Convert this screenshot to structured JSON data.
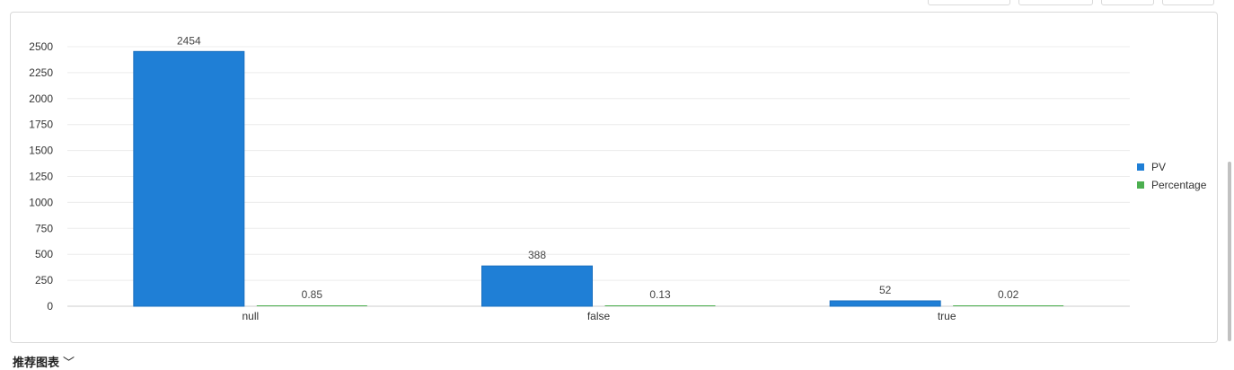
{
  "toolbar": {
    "buttons": [
      "",
      "",
      "",
      ""
    ]
  },
  "chart_data": {
    "type": "bar",
    "categories": [
      "null",
      "false",
      "true"
    ],
    "series": [
      {
        "name": "PV",
        "values": [
          2454,
          388,
          52
        ],
        "color": "#1f7fd6"
      },
      {
        "name": "Percentage",
        "values": [
          0.85,
          0.13,
          0.02
        ],
        "color": "#4caf50"
      }
    ],
    "ylim": [
      0,
      2500
    ],
    "yticks": [
      0,
      250,
      500,
      750,
      1000,
      1250,
      1500,
      1750,
      2000,
      2250,
      2500
    ],
    "grid": true,
    "legend_position": "right"
  },
  "footer": {
    "title": "推荐图表",
    "chevron": "﹀"
  }
}
